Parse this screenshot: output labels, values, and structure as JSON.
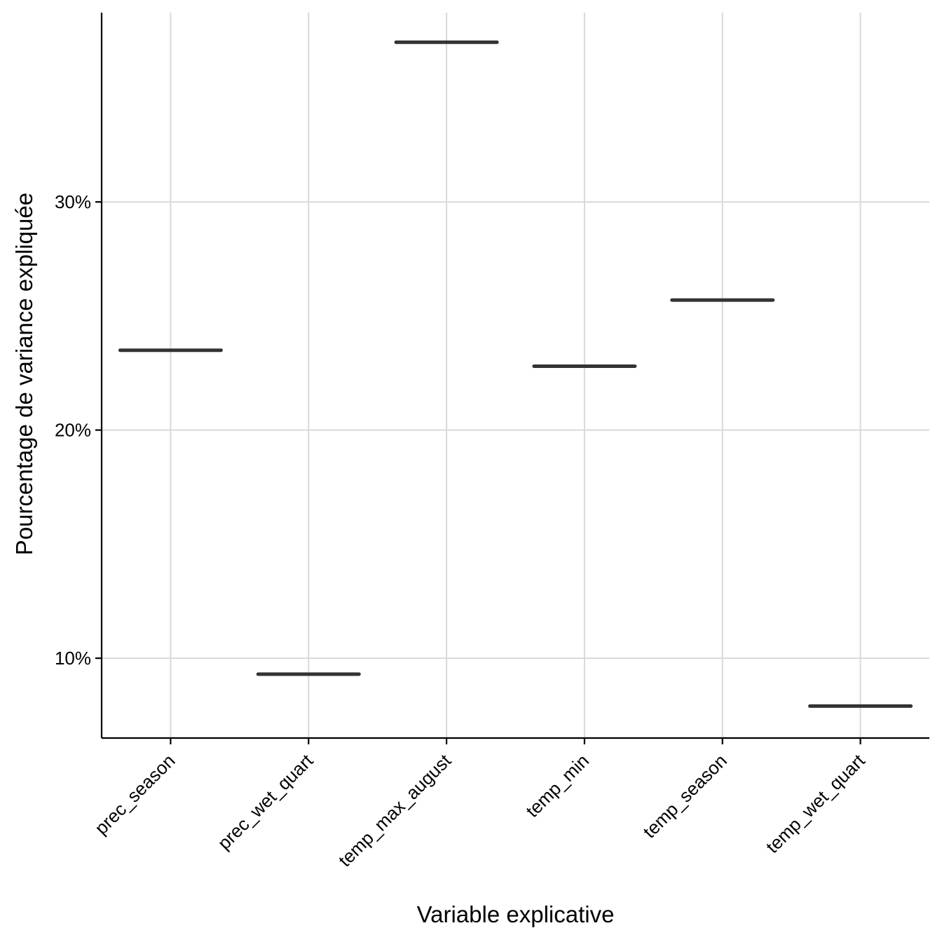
{
  "chart_data": {
    "type": "boxplot",
    "title": "",
    "xlabel": "Variable explicative",
    "ylabel": "Pourcentage de variance expliquée",
    "categories": [
      "prec_season",
      "prec_wet_quart",
      "temp_max_august",
      "temp_min",
      "temp_season",
      "temp_wet_quart"
    ],
    "values": [
      23.5,
      9.3,
      37.0,
      22.8,
      25.7,
      7.9
    ],
    "ylim": [
      6.5,
      38.3
    ],
    "yticks": [
      10,
      20,
      30
    ],
    "ytick_labels": [
      "10%",
      "20%",
      "30%"
    ],
    "grid": true,
    "legend": "none",
    "colors": {
      "median": "#333333",
      "grid": "#d9d9d9",
      "axis": "#000000"
    }
  }
}
